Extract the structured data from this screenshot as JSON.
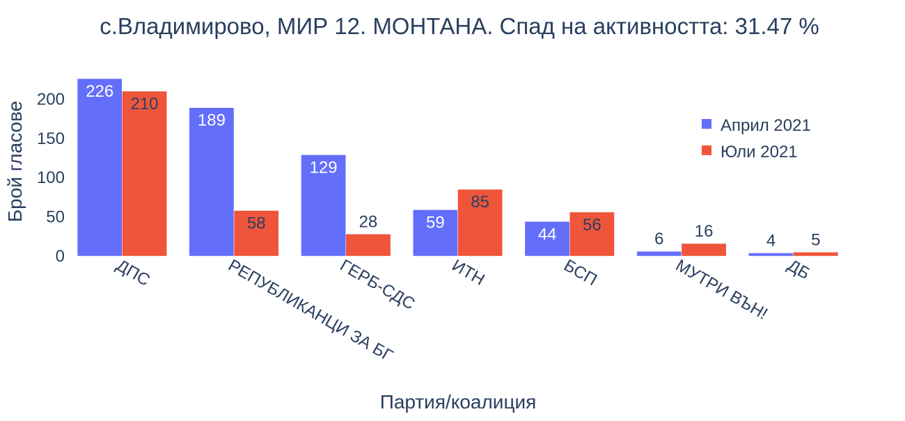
{
  "chart_data": {
    "type": "bar",
    "title": "с.Владимирово, МИР 12. МОНТАНА. Спад на активността: 31.47 %",
    "xlabel": "Партия/коалиция",
    "ylabel": "Брой гласове",
    "categories": [
      "ДПС",
      "РЕПУБЛИКАНЦИ ЗА БГ",
      "ГЕРБ-СДС",
      "ИТН",
      "БСП",
      "МУТРИ ВЪН!",
      "ДБ"
    ],
    "series": [
      {
        "name": "Април 2021",
        "color": "#636efa",
        "values": [
          226,
          189,
          129,
          59,
          44,
          6,
          4
        ]
      },
      {
        "name": "Юли 2021",
        "color": "#ef553b",
        "values": [
          210,
          58,
          28,
          85,
          56,
          16,
          5
        ]
      }
    ],
    "ylim": [
      0,
      226
    ],
    "yticks": [
      0,
      50,
      100,
      150,
      200
    ],
    "grid": false,
    "legend_position": "top-right"
  }
}
